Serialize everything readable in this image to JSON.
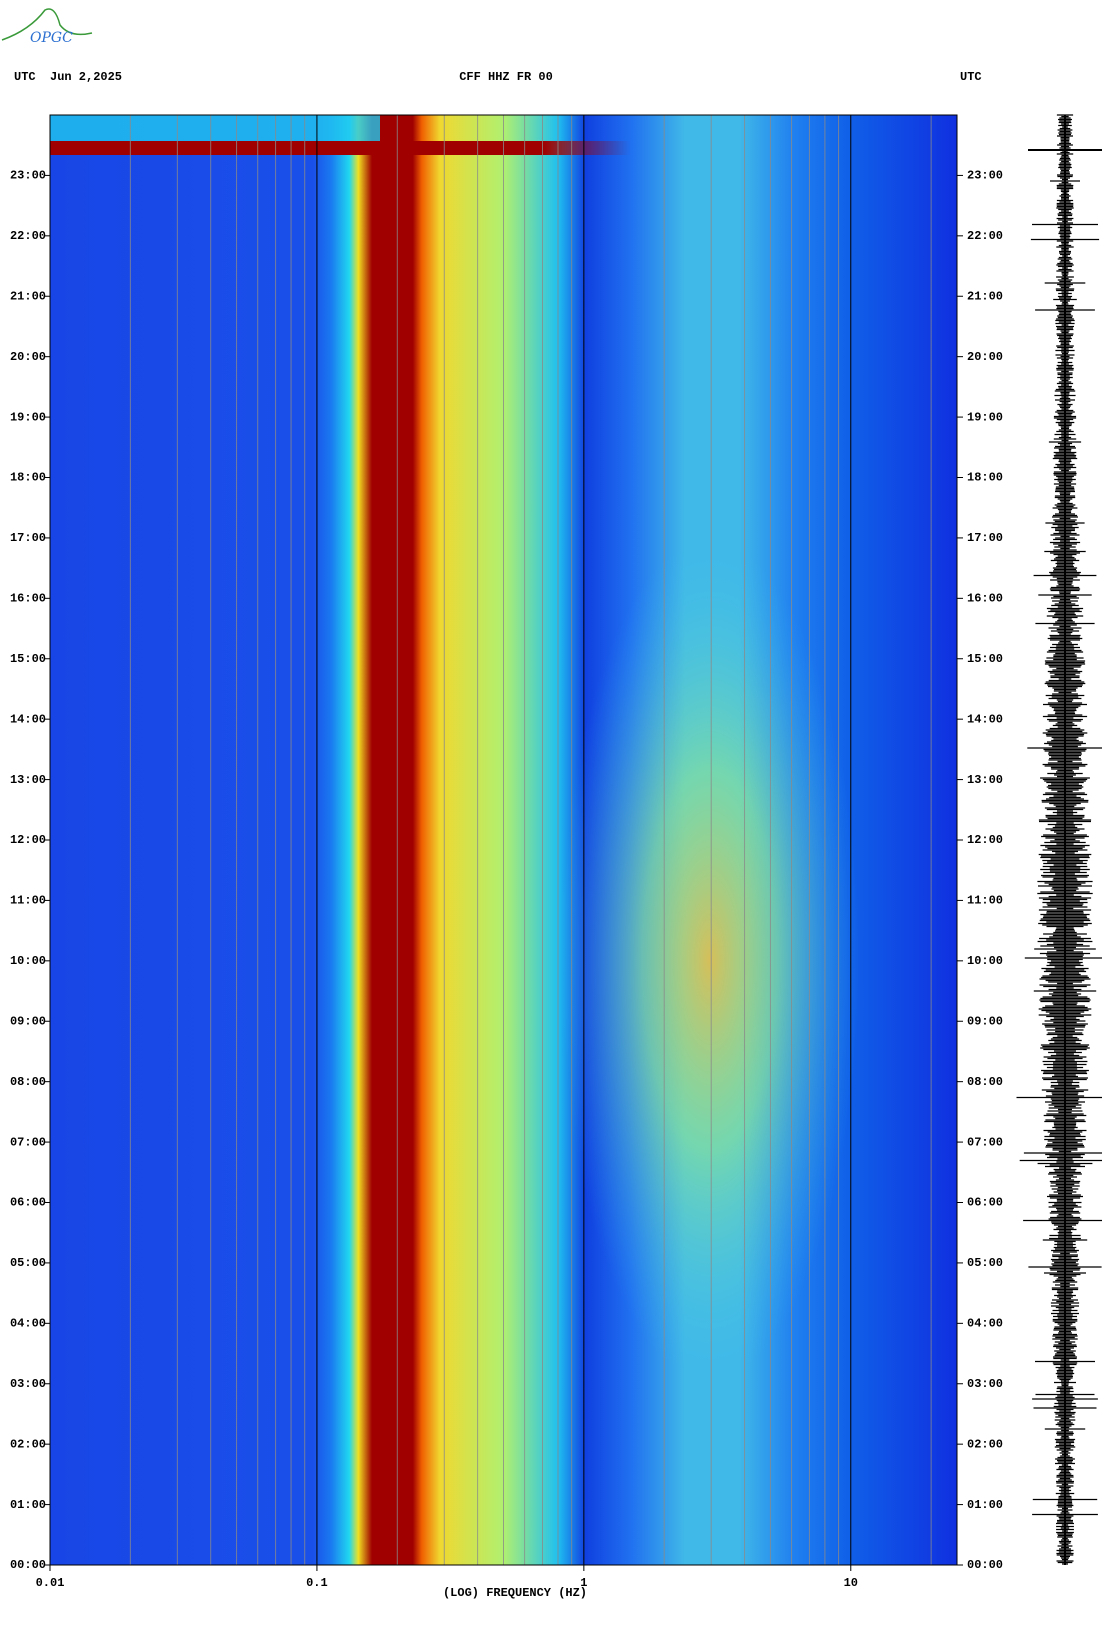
{
  "logo": "OPGC",
  "chart_data": {
    "type": "spectrogram",
    "title": "CFF HHZ FR 00",
    "timezone": "UTC",
    "date": "Jun 2,2025",
    "xlabel": "(LOG) FREQUENCY (HZ)",
    "log_x": true,
    "grid": true,
    "xlim": [
      0.01,
      25
    ],
    "xticks": [
      0.01,
      0.1,
      1,
      10
    ],
    "ylim": [
      0,
      24
    ],
    "yticks": [
      {
        "value": 0,
        "label": "00:00"
      },
      {
        "value": 1,
        "label": "01:00"
      },
      {
        "value": 2,
        "label": "02:00"
      },
      {
        "value": 3,
        "label": "03:00"
      },
      {
        "value": 4,
        "label": "04:00"
      },
      {
        "value": 5,
        "label": "05:00"
      },
      {
        "value": 6,
        "label": "06:00"
      },
      {
        "value": 7,
        "label": "07:00"
      },
      {
        "value": 8,
        "label": "08:00"
      },
      {
        "value": 9,
        "label": "09:00"
      },
      {
        "value": 10,
        "label": "10:00"
      },
      {
        "value": 11,
        "label": "11:00"
      },
      {
        "value": 12,
        "label": "12:00"
      },
      {
        "value": 13,
        "label": "13:00"
      },
      {
        "value": 14,
        "label": "14:00"
      },
      {
        "value": 15,
        "label": "15:00"
      },
      {
        "value": 16,
        "label": "16:00"
      },
      {
        "value": 17,
        "label": "17:00"
      },
      {
        "value": 18,
        "label": "18:00"
      },
      {
        "value": 19,
        "label": "19:00"
      },
      {
        "value": 20,
        "label": "20:00"
      },
      {
        "value": 21,
        "label": "21:00"
      },
      {
        "value": 22,
        "label": "22:00"
      },
      {
        "value": 23,
        "label": "23:00"
      }
    ]
  }
}
